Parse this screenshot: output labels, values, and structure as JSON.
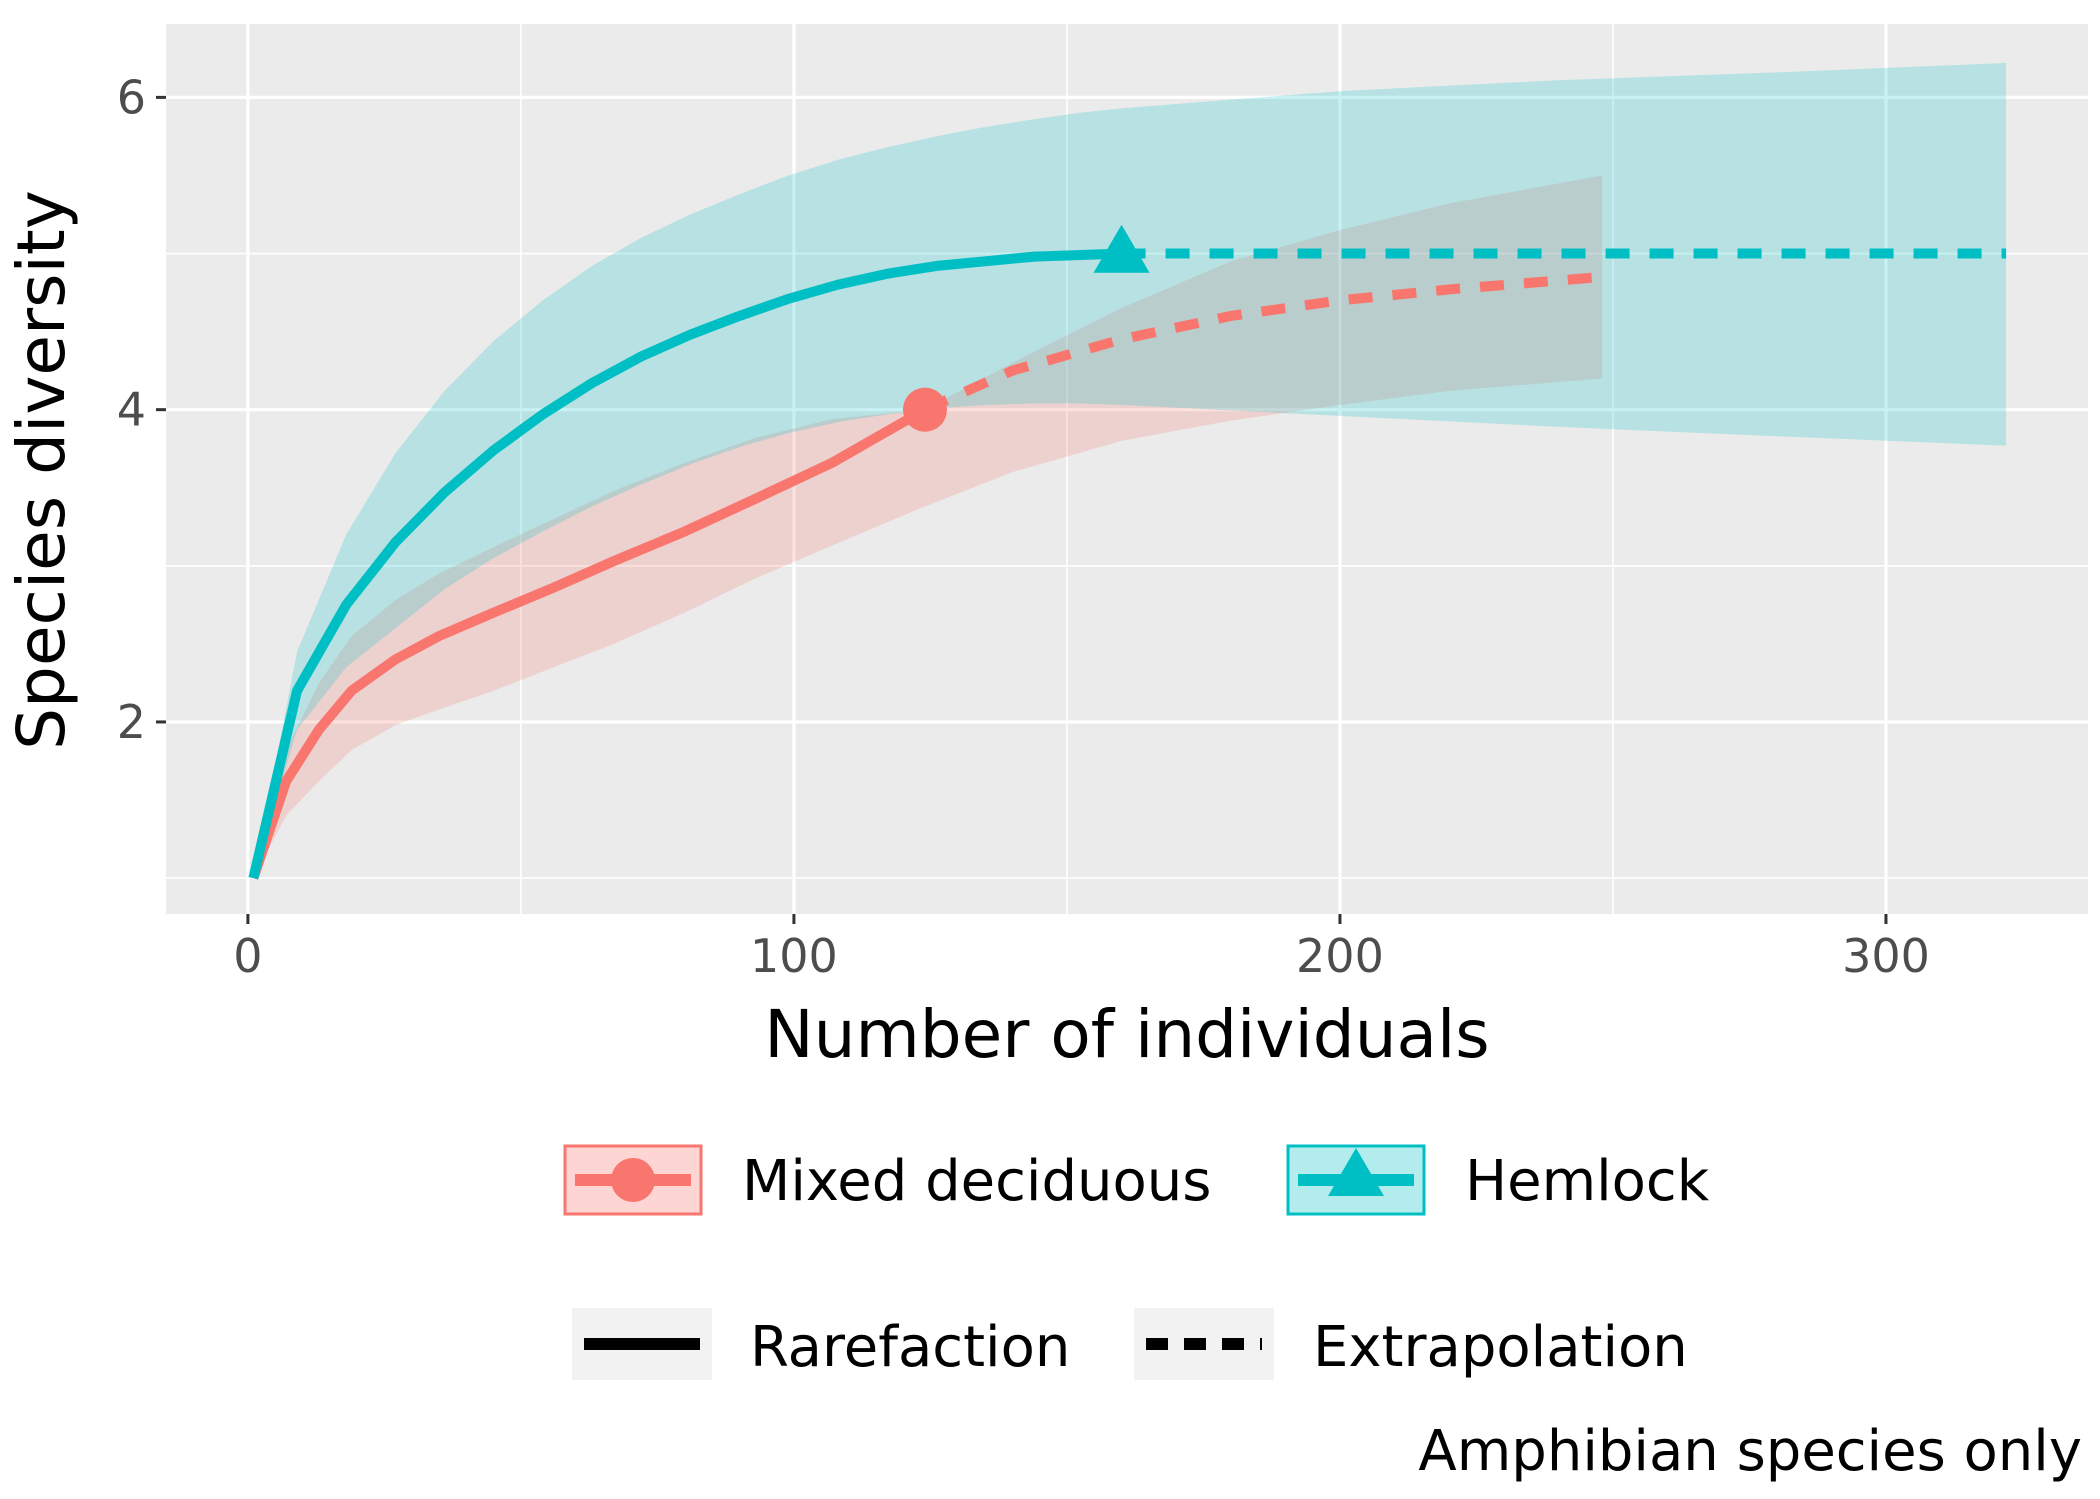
{
  "chart_data": {
    "type": "line",
    "xlabel": "Number of individuals",
    "ylabel": "Species diversity",
    "caption": "Amphibian species only",
    "xlim": [
      -15,
      337
    ],
    "ylim": [
      0.77,
      6.47
    ],
    "xticks": [
      0,
      100,
      200,
      300
    ],
    "yticks": [
      2,
      4,
      6
    ],
    "grid": true,
    "legend_position": "bottom",
    "series": [
      {
        "name": "Mixed deciduous",
        "color": "#F8766D",
        "marker": "circle",
        "observed": {
          "x": 124,
          "y": 4.0
        },
        "rarefaction": {
          "x": [
            1,
            7,
            13,
            19,
            27,
            35,
            45,
            56,
            67,
            80,
            93,
            107,
            124
          ],
          "y": [
            1.0,
            1.62,
            1.95,
            2.2,
            2.4,
            2.55,
            2.7,
            2.86,
            3.03,
            3.22,
            3.43,
            3.66,
            4.0
          ]
        },
        "extrapolation": {
          "x": [
            124,
            140,
            160,
            180,
            200,
            220,
            248
          ],
          "y": [
            4.0,
            4.25,
            4.45,
            4.6,
            4.7,
            4.77,
            4.85
          ]
        },
        "ci_x": [
          1,
          7,
          13,
          19,
          27,
          35,
          45,
          56,
          67,
          80,
          93,
          107,
          124,
          140,
          160,
          180,
          200,
          220,
          248
        ],
        "ci_lower": [
          1.0,
          1.4,
          1.62,
          1.82,
          1.98,
          2.08,
          2.2,
          2.35,
          2.5,
          2.7,
          2.92,
          3.13,
          3.38,
          3.6,
          3.8,
          3.93,
          4.03,
          4.12,
          4.2
        ],
        "ci_upper": [
          1.0,
          1.82,
          2.25,
          2.55,
          2.78,
          2.95,
          3.12,
          3.3,
          3.48,
          3.66,
          3.82,
          3.94,
          4.0,
          4.3,
          4.65,
          4.95,
          5.15,
          5.32,
          5.5
        ]
      },
      {
        "name": "Hemlock",
        "color": "#00BFC4",
        "marker": "triangle",
        "observed": {
          "x": 160,
          "y": 5.0
        },
        "rarefaction": {
          "x": [
            1,
            9,
            18,
            27,
            36,
            45,
            54,
            63,
            72,
            81,
            90,
            99,
            108,
            117,
            126,
            135,
            144,
            152,
            160
          ],
          "y": [
            1.0,
            2.2,
            2.75,
            3.15,
            3.47,
            3.74,
            3.97,
            4.17,
            4.34,
            4.48,
            4.6,
            4.71,
            4.8,
            4.87,
            4.92,
            4.95,
            4.98,
            4.99,
            5.0
          ]
        },
        "extrapolation": {
          "x": [
            160,
            200,
            240,
            280,
            322
          ],
          "y": [
            5.0,
            5.0,
            5.0,
            5.0,
            5.0
          ]
        },
        "ci_x": [
          1,
          9,
          18,
          27,
          36,
          45,
          54,
          63,
          72,
          81,
          90,
          99,
          108,
          117,
          126,
          135,
          144,
          152,
          160,
          200,
          240,
          280,
          322
        ],
        "ci_lower": [
          1.0,
          1.95,
          2.35,
          2.6,
          2.85,
          3.05,
          3.22,
          3.38,
          3.52,
          3.65,
          3.76,
          3.85,
          3.92,
          3.97,
          4.01,
          4.03,
          4.04,
          4.04,
          4.03,
          3.96,
          3.89,
          3.83,
          3.77
        ],
        "ci_upper": [
          1.0,
          2.45,
          3.2,
          3.72,
          4.12,
          4.44,
          4.7,
          4.92,
          5.1,
          5.25,
          5.38,
          5.5,
          5.6,
          5.68,
          5.75,
          5.81,
          5.86,
          5.9,
          5.93,
          6.04,
          6.11,
          6.16,
          6.22
        ]
      }
    ],
    "linetype_legend": [
      "Rarefaction",
      "Extrapolation"
    ]
  }
}
